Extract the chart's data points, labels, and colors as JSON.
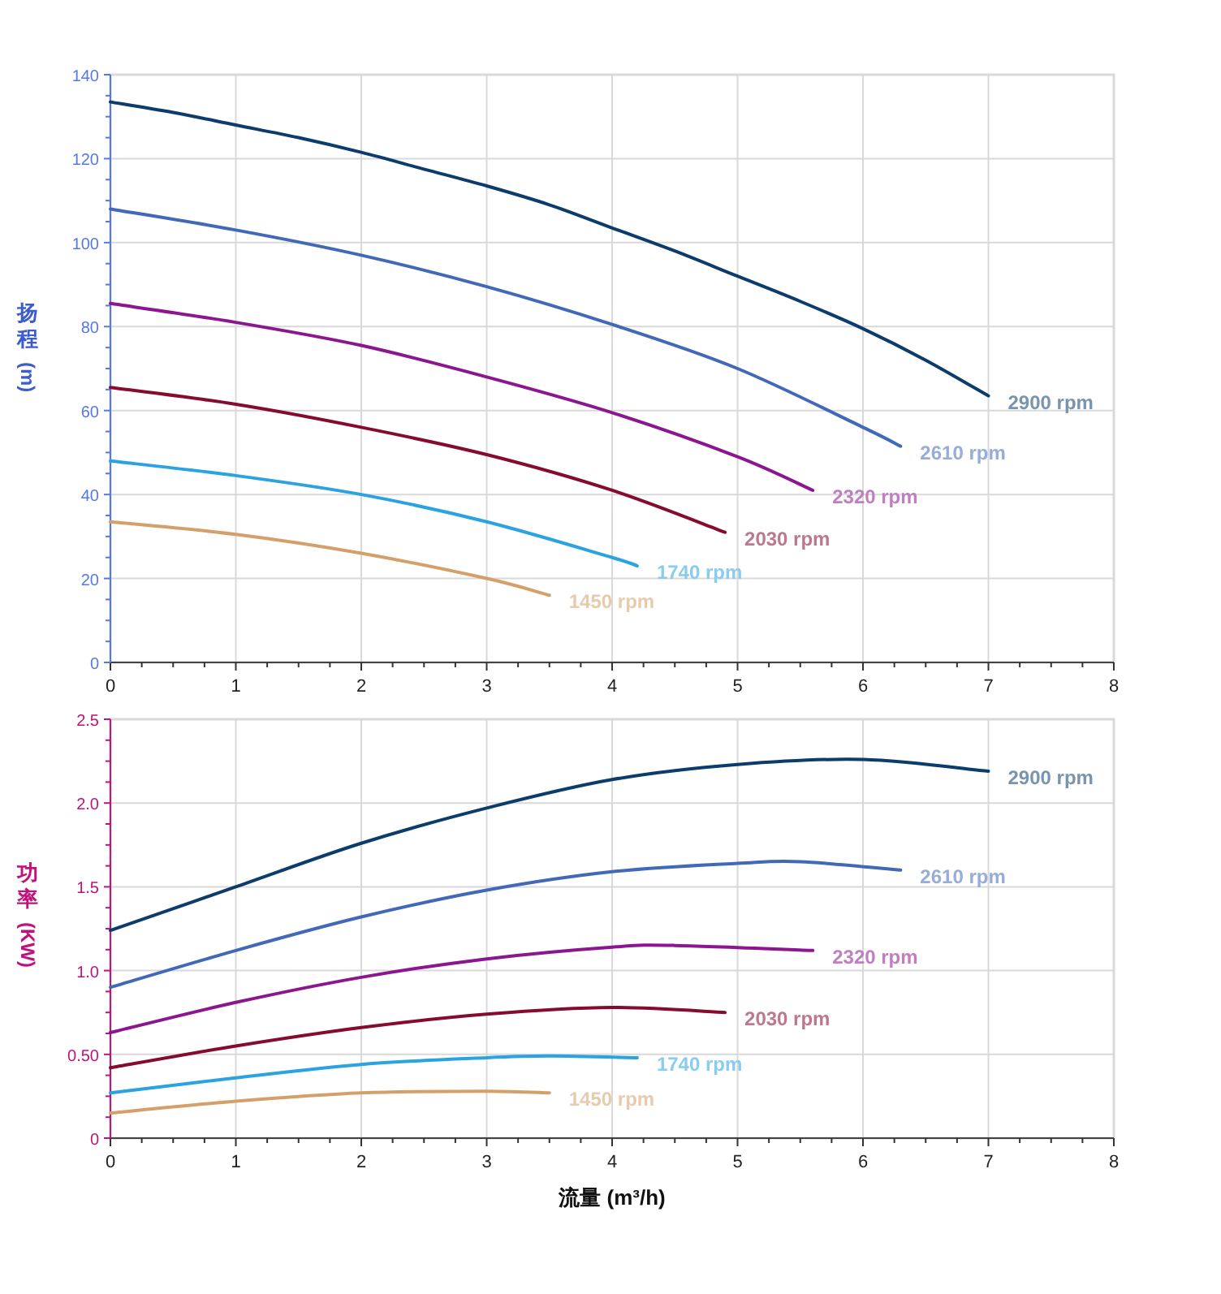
{
  "chart_data": [
    {
      "type": "line",
      "ylabel": "扬程(m)",
      "xlim": [
        0,
        8
      ],
      "xticks": [
        0,
        1,
        2,
        3,
        4,
        5,
        6,
        7,
        8
      ],
      "ylim": [
        0,
        140
      ],
      "yticks": [
        0,
        20,
        40,
        60,
        80,
        100,
        120,
        140
      ],
      "grid": true,
      "legend": false,
      "marker": "none",
      "line_style": "solid",
      "series": [
        {
          "name": "2900 rpm",
          "color": "#0b3c6b",
          "x": [
            0,
            0.5,
            1,
            1.5,
            2,
            2.5,
            3,
            3.5,
            4,
            4.5,
            5,
            5.5,
            6,
            6.5,
            7
          ],
          "values": [
            133.5,
            131,
            128,
            125,
            121.5,
            117.5,
            113.5,
            109,
            103.5,
            98,
            92,
            86,
            79.5,
            72,
            63.5
          ]
        },
        {
          "name": "2610 rpm",
          "color": "#4169b8",
          "x": [
            0,
            1,
            2,
            3,
            4,
            5,
            6,
            6.3
          ],
          "values": [
            108,
            103,
            97,
            89.5,
            80.5,
            70,
            56,
            51.5
          ]
        },
        {
          "name": "2320 rpm",
          "color": "#8b168f",
          "x": [
            0,
            1,
            2,
            3,
            4,
            5,
            5.6
          ],
          "values": [
            85.5,
            81,
            75.5,
            68,
            59.5,
            49,
            41
          ]
        },
        {
          "name": "2030 rpm",
          "color": "#850c2f",
          "x": [
            0,
            1,
            2,
            3,
            4,
            4.9
          ],
          "values": [
            65.5,
            61.5,
            56,
            49.5,
            41,
            31
          ]
        },
        {
          "name": "1740 rpm",
          "color": "#2aa3e0",
          "x": [
            0,
            1,
            2,
            3,
            4,
            4.2
          ],
          "values": [
            48,
            44.5,
            40,
            33.5,
            25,
            23
          ]
        },
        {
          "name": "1450 rpm",
          "color": "#d4a06a",
          "x": [
            0,
            1,
            2,
            3,
            3.5
          ],
          "values": [
            33.5,
            30.5,
            26,
            20,
            16
          ]
        }
      ]
    },
    {
      "type": "line",
      "ylabel": "功率(KW)",
      "xlabel": "流量 (m³/h)",
      "xlim": [
        0,
        8
      ],
      "xticks": [
        0,
        1,
        2,
        3,
        4,
        5,
        6,
        7,
        8
      ],
      "ylim": [
        0,
        2.5
      ],
      "yticks": [
        0,
        {
          "value": 0.5,
          "label": "0.50"
        },
        {
          "value": 1,
          "label": "1.0"
        },
        1.5,
        {
          "value": 2,
          "label": "2.0"
        },
        2.5
      ],
      "grid": true,
      "legend": false,
      "marker": "none",
      "line_style": "solid",
      "series": [
        {
          "name": "2900 rpm",
          "color": "#0b3c6b",
          "x": [
            0,
            1,
            2,
            3,
            4,
            5,
            6,
            7
          ],
          "values": [
            1.24,
            1.5,
            1.76,
            1.97,
            2.14,
            2.23,
            2.26,
            2.19
          ]
        },
        {
          "name": "2610 rpm",
          "color": "#4169b8",
          "x": [
            0,
            1,
            2,
            3,
            4,
            5,
            5.5,
            6.3
          ],
          "values": [
            0.9,
            1.12,
            1.32,
            1.48,
            1.59,
            1.64,
            1.65,
            1.6
          ]
        },
        {
          "name": "2320 rpm",
          "color": "#8b168f",
          "x": [
            0,
            1,
            2,
            3,
            4,
            4.5,
            5.6
          ],
          "values": [
            0.63,
            0.81,
            0.96,
            1.07,
            1.14,
            1.15,
            1.12
          ]
        },
        {
          "name": "2030 rpm",
          "color": "#850c2f",
          "x": [
            0,
            1,
            2,
            3,
            4,
            4.9
          ],
          "values": [
            0.42,
            0.55,
            0.66,
            0.74,
            0.78,
            0.75
          ]
        },
        {
          "name": "1740 rpm",
          "color": "#2aa3e0",
          "x": [
            0,
            1,
            2,
            3,
            3.5,
            4.2
          ],
          "values": [
            0.27,
            0.36,
            0.44,
            0.48,
            0.49,
            0.48
          ]
        },
        {
          "name": "1450 rpm",
          "color": "#d4a06a",
          "x": [
            0,
            1,
            2,
            3,
            3.5
          ],
          "values": [
            0.15,
            0.22,
            0.27,
            0.28,
            0.27
          ]
        }
      ]
    }
  ]
}
